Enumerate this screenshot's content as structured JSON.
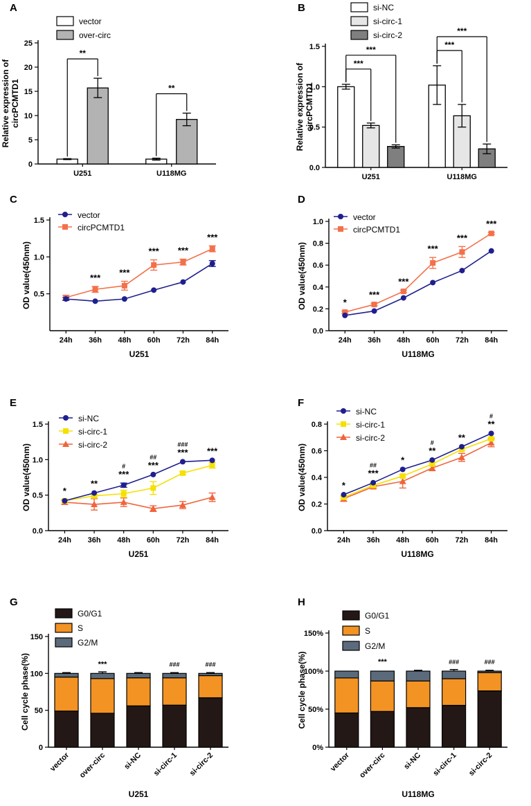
{
  "figure": {
    "colors": {
      "white": "#ffffff",
      "light_gray": "#e6e6e6",
      "gray": "#b3b3b3",
      "dark_gray": "#7f7f7f",
      "navy": "#1f1f8f",
      "orange": "#f4704a",
      "yellow": "#f5e000",
      "red_orange": "#f0643c",
      "g0g1": "#231815",
      "s_phase": "#f39323",
      "g2m": "#5b6b7c"
    }
  },
  "chart_data": [
    {
      "panel": "A",
      "type": "bar",
      "title": "",
      "ylabel": "Relative expression of circPCMTD1",
      "xlabel": "",
      "ylim": [
        0,
        25
      ],
      "yticks": [
        "0",
        "5",
        "10",
        "15",
        "20",
        "25"
      ],
      "ytick_values": [
        0,
        5,
        10,
        15,
        20,
        25
      ],
      "categories": [
        "U251",
        "U118MG"
      ],
      "series": [
        {
          "name": "vector",
          "values": [
            1.0,
            1.0
          ],
          "errors": [
            0.1,
            0.2
          ],
          "color": "#ffffff"
        },
        {
          "name": "over-circ",
          "values": [
            15.7,
            9.2
          ],
          "errors": [
            2.0,
            1.3
          ],
          "color": "#b3b3b3"
        }
      ],
      "annotations": [
        {
          "text": "**",
          "group": 0
        },
        {
          "text": "**",
          "group": 1
        }
      ]
    },
    {
      "panel": "B",
      "type": "bar",
      "title": "",
      "ylabel": "Relative expression of circPCMTD1",
      "xlabel": "",
      "ylim": [
        0,
        1.5
      ],
      "yticks": [
        "0.0",
        "0.5",
        "1.0",
        "1.5"
      ],
      "ytick_values": [
        0,
        0.5,
        1.0,
        1.5
      ],
      "categories": [
        "U251",
        "U118MG"
      ],
      "series": [
        {
          "name": "si-NC",
          "values": [
            1.0,
            1.02
          ],
          "errors": [
            0.03,
            0.24
          ],
          "color": "#ffffff"
        },
        {
          "name": "si-circ-1",
          "values": [
            0.52,
            0.64
          ],
          "errors": [
            0.03,
            0.14
          ],
          "color": "#e6e6e6"
        },
        {
          "name": "si-circ-2",
          "values": [
            0.26,
            0.23
          ],
          "errors": [
            0.02,
            0.06
          ],
          "color": "#7f7f7f"
        }
      ],
      "annotations": [
        {
          "text": "***",
          "group": 0,
          "from": 0,
          "to": 1
        },
        {
          "text": "***",
          "group": 0,
          "from": 0,
          "to": 2
        },
        {
          "text": "***",
          "group": 1,
          "from": 0,
          "to": 1
        },
        {
          "text": "***",
          "group": 1,
          "from": 0,
          "to": 2
        }
      ]
    },
    {
      "panel": "C",
      "type": "line",
      "title": "",
      "ylabel": "OD value(450nm)",
      "xlabel": "U251",
      "ylim": [
        0,
        1.5
      ],
      "yticks": [
        "0.5",
        "1.0",
        "1.5"
      ],
      "ytick_values": [
        0.5,
        1.0,
        1.5
      ],
      "categories": [
        "24h",
        "36h",
        "48h",
        "60h",
        "72h",
        "84h"
      ],
      "series": [
        {
          "name": "vector",
          "marker": "circle",
          "color": "#1f1f8f",
          "values": [
            0.43,
            0.4,
            0.43,
            0.55,
            0.66,
            0.91
          ],
          "errors": [
            0.02,
            0.01,
            0.01,
            0.01,
            0.01,
            0.04
          ]
        },
        {
          "name": "circPCMTD1",
          "marker": "square",
          "color": "#f4704a",
          "values": [
            0.45,
            0.56,
            0.61,
            0.89,
            0.93,
            1.11
          ],
          "errors": [
            0.03,
            0.04,
            0.06,
            0.07,
            0.04,
            0.04
          ]
        }
      ],
      "annotations": [
        {
          "text": "***",
          "index": 1
        },
        {
          "text": "***",
          "index": 2
        },
        {
          "text": "***",
          "index": 3
        },
        {
          "text": "***",
          "index": 4
        },
        {
          "text": "***",
          "index": 5
        }
      ]
    },
    {
      "panel": "D",
      "type": "line",
      "title": "",
      "ylabel": "OD value(450nm)",
      "xlabel": "U118MG",
      "ylim": [
        0,
        1.0
      ],
      "yticks": [
        "0.0",
        "0.2",
        "0.4",
        "0.6",
        "0.8",
        "1.0"
      ],
      "ytick_values": [
        0,
        0.2,
        0.4,
        0.6,
        0.8,
        1.0
      ],
      "categories": [
        "24h",
        "36h",
        "48h",
        "60h",
        "72h",
        "84h"
      ],
      "series": [
        {
          "name": "vector",
          "marker": "circle",
          "color": "#1f1f8f",
          "values": [
            0.14,
            0.18,
            0.3,
            0.44,
            0.55,
            0.73
          ],
          "errors": [
            0.005,
            0.005,
            0.005,
            0.005,
            0.005,
            0.005
          ]
        },
        {
          "name": "circPCMTD1",
          "marker": "square",
          "color": "#f4704a",
          "values": [
            0.17,
            0.24,
            0.36,
            0.62,
            0.72,
            0.89
          ],
          "errors": [
            0.01,
            0.01,
            0.01,
            0.05,
            0.05,
            0.01
          ]
        }
      ],
      "annotations": [
        {
          "text": "*",
          "index": 0
        },
        {
          "text": "***",
          "index": 1
        },
        {
          "text": "***",
          "index": 2
        },
        {
          "text": "***",
          "index": 3
        },
        {
          "text": "***",
          "index": 4
        },
        {
          "text": "***",
          "index": 5
        }
      ]
    },
    {
      "panel": "E",
      "type": "line",
      "title": "",
      "ylabel": "OD value(450nm)",
      "xlabel": "U251",
      "ylim": [
        0,
        1.5
      ],
      "yticks": [
        "0.0",
        "0.5",
        "1.0",
        "1.5"
      ],
      "ytick_values": [
        0,
        0.5,
        1.0,
        1.5
      ],
      "categories": [
        "24h",
        "36h",
        "48h",
        "60h",
        "72h",
        "84h"
      ],
      "series": [
        {
          "name": "si-NC",
          "marker": "circle",
          "color": "#1f1f8f",
          "values": [
            0.42,
            0.53,
            0.64,
            0.79,
            0.97,
            0.99
          ],
          "errors": [
            0.01,
            0.01,
            0.03,
            0.01,
            0.01,
            0.01
          ]
        },
        {
          "name": "si-circ-1",
          "marker": "square",
          "color": "#f5e000",
          "values": [
            0.42,
            0.49,
            0.52,
            0.6,
            0.81,
            0.92
          ],
          "errors": [
            0.02,
            0.02,
            0.05,
            0.09,
            0.02,
            0.04
          ]
        },
        {
          "name": "si-circ-2",
          "marker": "triangle",
          "color": "#f0643c",
          "values": [
            0.4,
            0.37,
            0.4,
            0.31,
            0.36,
            0.47
          ],
          "errors": [
            0.03,
            0.08,
            0.06,
            0.04,
            0.05,
            0.06
          ]
        }
      ],
      "annotations": [
        {
          "text": "*",
          "index": 0
        },
        {
          "text": "**",
          "index": 1
        },
        {
          "text": "***",
          "sub": "#",
          "index": 2
        },
        {
          "text": "***",
          "sub": "##",
          "index": 3
        },
        {
          "text": "***",
          "sub": "###",
          "index": 4
        },
        {
          "text": "***",
          "index": 5
        }
      ]
    },
    {
      "panel": "F",
      "type": "line",
      "title": "",
      "ylabel": "OD value(450nm)",
      "xlabel": "U118MG",
      "ylim": [
        0,
        0.8
      ],
      "yticks": [
        "0.0",
        "0.2",
        "0.4",
        "0.6",
        "0.8"
      ],
      "ytick_values": [
        0,
        0.2,
        0.4,
        0.6,
        0.8
      ],
      "categories": [
        "24h",
        "36h",
        "48h",
        "60h",
        "72h",
        "84h"
      ],
      "series": [
        {
          "name": "si-NC",
          "marker": "circle",
          "color": "#1f1f8f",
          "values": [
            0.27,
            0.36,
            0.46,
            0.53,
            0.63,
            0.73
          ],
          "errors": [
            0.005,
            0.005,
            0.005,
            0.005,
            0.005,
            0.005
          ]
        },
        {
          "name": "si-circ-1",
          "marker": "square",
          "color": "#f5e000",
          "values": [
            0.25,
            0.34,
            0.41,
            0.5,
            0.61,
            0.69
          ],
          "errors": [
            0.01,
            0.01,
            0.01,
            0.01,
            0.01,
            0.01
          ]
        },
        {
          "name": "si-circ-2",
          "marker": "triangle",
          "color": "#f0643c",
          "values": [
            0.24,
            0.33,
            0.37,
            0.47,
            0.55,
            0.66
          ],
          "errors": [
            0.02,
            0.01,
            0.05,
            0.02,
            0.03,
            0.03
          ]
        }
      ],
      "annotations": [
        {
          "text": "*",
          "index": 0
        },
        {
          "text": "***",
          "sub": "##",
          "index": 1
        },
        {
          "text": "*",
          "index": 2
        },
        {
          "text": "**",
          "sub": "#",
          "index": 3
        },
        {
          "text": "**",
          "index": 4
        },
        {
          "text": "**",
          "sub": "#",
          "index": 5
        }
      ]
    },
    {
      "panel": "G",
      "type": "bar",
      "stacked": true,
      "title": "",
      "ylabel": "Cell cycle phase(%)",
      "xlabel": "U251",
      "ylim": [
        0,
        150
      ],
      "yticks": [
        "0",
        "50",
        "100",
        "150"
      ],
      "ytick_values": [
        0,
        50,
        100,
        150
      ],
      "categories": [
        "vector",
        "over-circ",
        "si-NC",
        "si-circ-1",
        "si-circ-2"
      ],
      "series": [
        {
          "name": "G0/G1",
          "color": "#231815",
          "values": [
            49,
            46,
            56,
            57,
            67
          ],
          "errors": [
            2,
            2,
            2,
            2,
            2
          ]
        },
        {
          "name": "S",
          "color": "#f39323",
          "values": [
            46,
            47,
            38,
            37,
            30
          ],
          "errors": [
            0,
            2,
            0,
            2,
            0
          ]
        },
        {
          "name": "G2/M",
          "color": "#5b6b7c",
          "values": [
            5,
            7,
            6,
            6,
            3
          ],
          "errors": [
            1,
            2,
            1,
            1,
            1
          ]
        }
      ],
      "annotations": [
        {
          "text": "***",
          "index": 1
        },
        {
          "text": "###",
          "index": 3
        },
        {
          "text": "###",
          "index": 4
        }
      ]
    },
    {
      "panel": "H",
      "type": "bar",
      "stacked": true,
      "title": "",
      "ylabel": "Cell cycle phase(%)",
      "xlabel": "U118MG",
      "ylim": [
        0,
        150
      ],
      "yticks": [
        "0%",
        "50%",
        "100%",
        "150%"
      ],
      "ytick_values": [
        0,
        50,
        100,
        150
      ],
      "categories": [
        "vector",
        "over-circ",
        "si-NC",
        "si-circ-1",
        "si-circ-2"
      ],
      "series": [
        {
          "name": "G0/G1",
          "color": "#231815",
          "values": [
            45,
            47,
            52,
            55,
            74
          ],
          "errors": [
            0,
            2,
            7,
            11,
            0
          ]
        },
        {
          "name": "S",
          "color": "#f39323",
          "values": [
            46,
            40,
            35,
            35,
            24
          ],
          "errors": [
            0,
            2,
            10,
            0,
            2
          ]
        },
        {
          "name": "G2/M",
          "color": "#5b6b7c",
          "values": [
            9,
            13,
            13,
            10,
            2
          ],
          "errors": [
            0,
            0,
            1,
            2,
            1
          ]
        }
      ],
      "annotations": [
        {
          "text": "***",
          "index": 1
        },
        {
          "text": "###",
          "index": 3
        },
        {
          "text": "###",
          "index": 4
        }
      ]
    }
  ]
}
